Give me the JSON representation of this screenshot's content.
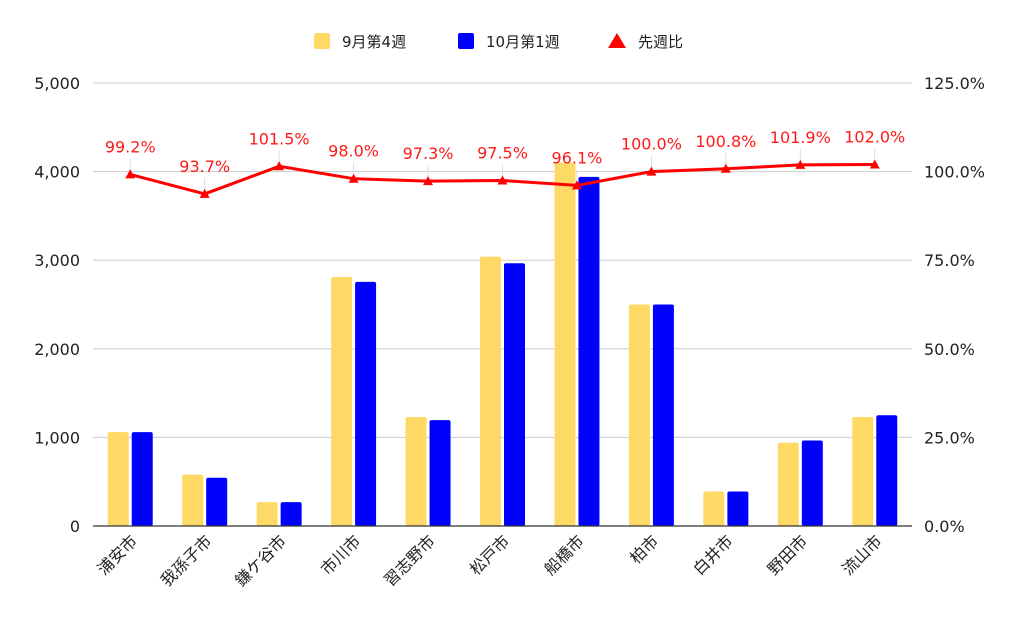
{
  "chart_data": {
    "type": "bar",
    "categories": [
      "浦安市",
      "我孫子市",
      "鎌ケ谷市",
      "市川市",
      "習志野市",
      "松戸市",
      "船橋市",
      "柏市",
      "白井市",
      "野田市",
      "流山市"
    ],
    "series": [
      {
        "name": "9月第4週",
        "type": "bar",
        "axis": "left",
        "color": "#ffd966",
        "values": [
          1060,
          580,
          270,
          2810,
          1230,
          3040,
          4100,
          2500,
          390,
          940,
          1230
        ]
      },
      {
        "name": "10月第1週",
        "type": "bar",
        "axis": "left",
        "color": "#0000ff",
        "values": [
          1060,
          545,
          270,
          2755,
          1195,
          2965,
          3940,
          2500,
          390,
          965,
          1250
        ]
      },
      {
        "name": "先週比",
        "type": "line",
        "axis": "right",
        "color": "#ff0000",
        "values": [
          99.2,
          93.7,
          101.5,
          98.0,
          97.3,
          97.5,
          96.1,
          100.0,
          100.8,
          101.9,
          102.0
        ],
        "labels": [
          "99.2%",
          "93.7%",
          "101.5%",
          "98.0%",
          "97.3%",
          "97.5%",
          "96.1%",
          "100.0%",
          "100.8%",
          "101.9%",
          "102.0%"
        ]
      }
    ],
    "y_left": {
      "ylim": [
        0,
        5000
      ],
      "ticks": [
        "0",
        "1,000",
        "2,000",
        "3,000",
        "4,000",
        "5,000"
      ],
      "tick_values": [
        0,
        1000,
        2000,
        3000,
        4000,
        5000
      ]
    },
    "y_right": {
      "ylim": [
        0,
        125
      ],
      "ticks": [
        "0.0%",
        "25.0%",
        "50.0%",
        "75.0%",
        "100.0%",
        "125.0%"
      ],
      "tick_values": [
        0,
        25,
        50,
        75,
        100,
        125
      ]
    },
    "legend_position": "top",
    "grid": true
  }
}
